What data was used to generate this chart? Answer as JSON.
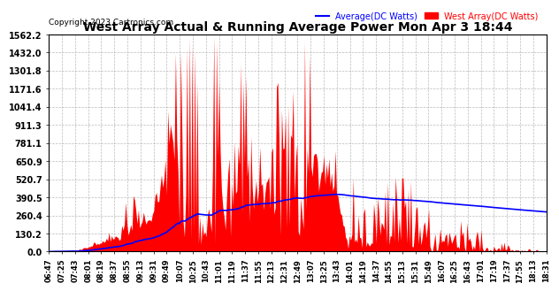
{
  "title": "West Array Actual & Running Average Power Mon Apr 3 18:44",
  "copyright": "Copyright 2023 Cartronics.com",
  "legend_avg": "Average(DC Watts)",
  "legend_west": "West Array(DC Watts)",
  "ymax": 1562.2,
  "ymin": 0.0,
  "yticks": [
    0.0,
    130.2,
    260.4,
    390.5,
    520.7,
    650.9,
    781.1,
    911.3,
    1041.4,
    1171.6,
    1301.8,
    1432.0,
    1562.2
  ],
  "bg_color": "#ffffff",
  "plot_bg_color": "#ffffff",
  "grid_color": "#aaaaaa",
  "fill_color": "#ff0000",
  "avg_color": "#0000ff",
  "west_color": "#ff0000",
  "title_color": "#000000",
  "copyright_color": "#000000",
  "xtick_labels": [
    "06:47",
    "07:25",
    "07:43",
    "08:01",
    "08:19",
    "08:37",
    "08:55",
    "09:13",
    "09:31",
    "09:49",
    "10:07",
    "10:25",
    "10:43",
    "11:01",
    "11:19",
    "11:37",
    "11:55",
    "12:13",
    "12:31",
    "12:49",
    "13:07",
    "13:25",
    "13:43",
    "14:01",
    "14:19",
    "14:37",
    "14:55",
    "15:13",
    "15:31",
    "15:49",
    "16:07",
    "16:25",
    "16:43",
    "17:01",
    "17:19",
    "17:37",
    "17:55",
    "18:13",
    "18:31"
  ],
  "n_points": 390
}
